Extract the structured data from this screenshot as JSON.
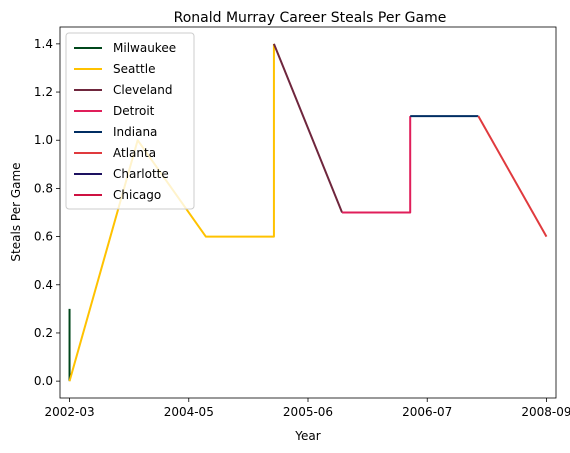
{
  "chart_data": {
    "type": "line",
    "title": "Ronald Murray Career Steals Per Game",
    "xlabel": "Year",
    "ylabel": "Steals Per Game",
    "x_ticks": [
      "2002-03",
      "2004-05",
      "2005-06",
      "2006-07",
      "2008-09"
    ],
    "y_ticks": [
      "0.0",
      "0.2",
      "0.4",
      "0.6",
      "0.8",
      "1.0",
      "1.2",
      "1.4"
    ],
    "ylim": [
      -0.07,
      1.47
    ],
    "xlim": [
      -0.14,
      7.14
    ],
    "grid": false,
    "legend_position": "top-left",
    "series": [
      {
        "name": "Milwaukee",
        "color": "#00471B",
        "points": [
          [
            0,
            0.3
          ],
          [
            0,
            0.0
          ]
        ]
      },
      {
        "name": "Seattle",
        "color": "#FFC200",
        "points": [
          [
            0,
            0.0
          ],
          [
            1,
            1.0
          ],
          [
            2,
            0.6
          ],
          [
            3,
            0.6
          ],
          [
            3,
            1.4
          ]
        ]
      },
      {
        "name": "Cleveland",
        "color": "#6F263D",
        "points": [
          [
            3,
            1.4
          ],
          [
            4,
            0.7
          ]
        ]
      },
      {
        "name": "Detroit",
        "color": "#E01E5A",
        "points": [
          [
            4,
            0.7
          ],
          [
            5,
            0.7
          ],
          [
            5,
            1.1
          ]
        ]
      },
      {
        "name": "Indiana",
        "color": "#002D62",
        "points": [
          [
            5,
            1.1
          ],
          [
            6,
            1.1
          ]
        ]
      },
      {
        "name": "Atlanta",
        "color": "#E03A3E",
        "points": [
          [
            6,
            1.1
          ],
          [
            7,
            0.6
          ]
        ]
      },
      {
        "name": "Charlotte",
        "color": "#1D1160",
        "points": []
      },
      {
        "name": "Chicago",
        "color": "#CE1141",
        "points": []
      }
    ]
  }
}
